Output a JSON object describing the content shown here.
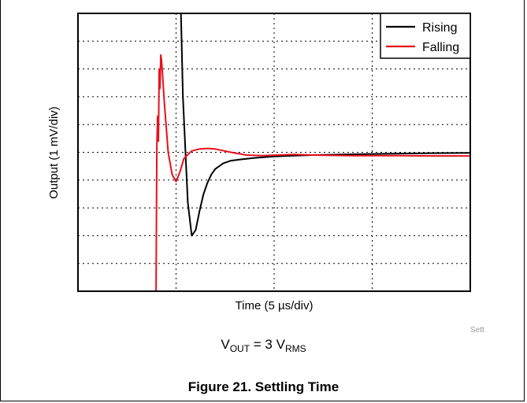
{
  "chart_data": {
    "type": "line",
    "title": "",
    "xlabel": "Time (5 µs/div)",
    "ylabel": "Output (1 mV/div)",
    "x_divisions": 4,
    "y_divisions": 10,
    "grid": true,
    "legend_position": "top-right",
    "series": [
      {
        "name": "Rising",
        "color": "#000000",
        "x": [
          5.25,
          5.35,
          5.6,
          5.8,
          6.0,
          6.2,
          6.4,
          6.6,
          6.8,
          7.0,
          7.4,
          7.8,
          8.4,
          9.0,
          10.0,
          11.0,
          12.0,
          14.0,
          16.0,
          18.0,
          20.0
        ],
        "y": [
          10.0,
          7.0,
          3.2,
          2.0,
          2.2,
          2.9,
          3.5,
          3.9,
          4.2,
          4.4,
          4.6,
          4.7,
          4.75,
          4.8,
          4.85,
          4.88,
          4.9,
          4.93,
          4.95,
          4.97,
          4.98
        ]
      },
      {
        "name": "Falling",
        "color": "#e8101c",
        "x": [
          3.98,
          4.02,
          4.06,
          4.1,
          4.14,
          4.18,
          4.22,
          4.26,
          4.3,
          4.4,
          4.6,
          4.8,
          5.0,
          5.2,
          5.4,
          5.8,
          6.2,
          6.6,
          7.0,
          7.8,
          8.6,
          9.4,
          10.2,
          11.0,
          12.0,
          14.0,
          16.0,
          18.0,
          20.0
        ],
        "y": [
          0.0,
          5.2,
          6.3,
          5.4,
          8.0,
          7.3,
          8.5,
          8.3,
          7.9,
          6.8,
          5.0,
          4.2,
          3.95,
          4.3,
          4.78,
          5.05,
          5.12,
          5.14,
          5.12,
          5.0,
          4.9,
          4.88,
          4.9,
          4.92,
          4.9,
          4.88,
          4.88,
          4.87,
          4.87
        ]
      }
    ]
  },
  "caption": {
    "vout_main": "V",
    "vout_sub": "OUT",
    "vout_mid": " = 3 V",
    "vout_rms": "RMS",
    "figure_title": "Figure 21. Settling Time",
    "corner_tag": "Sett"
  }
}
